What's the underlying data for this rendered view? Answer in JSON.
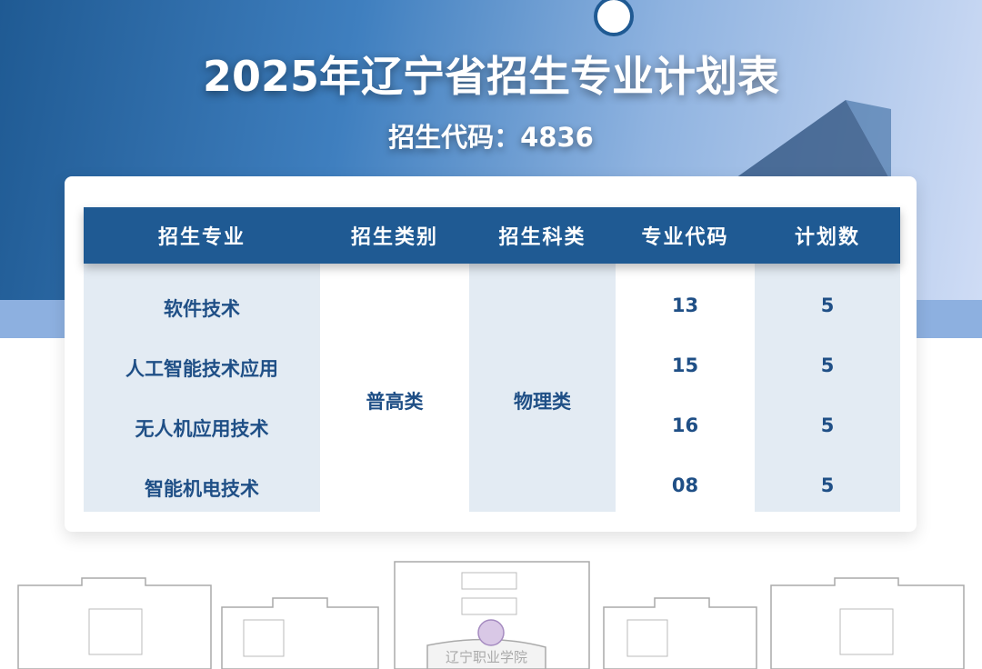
{
  "header": {
    "title": "2025年辽宁省招生专业计划表",
    "subtitle": "招生代码：4836"
  },
  "table": {
    "columns": [
      "招生专业",
      "招生类别",
      "招生科类",
      "专业代码",
      "计划数"
    ],
    "category": "普高类",
    "subject": "物理类",
    "rows": [
      {
        "major": "软件技术",
        "code": "13",
        "plan": "5"
      },
      {
        "major": "人工智能技术应用",
        "code": "15",
        "plan": "5"
      },
      {
        "major": "无人机应用技术",
        "code": "16",
        "plan": "5"
      },
      {
        "major": "智能机电技术",
        "code": "08",
        "plan": "5"
      }
    ]
  },
  "footer": {
    "logo_text": "辽宁职业学院"
  },
  "colors": {
    "primary": "#1f5a93",
    "cell_bg": "#e3ebf3",
    "text": "#1f4f86"
  }
}
